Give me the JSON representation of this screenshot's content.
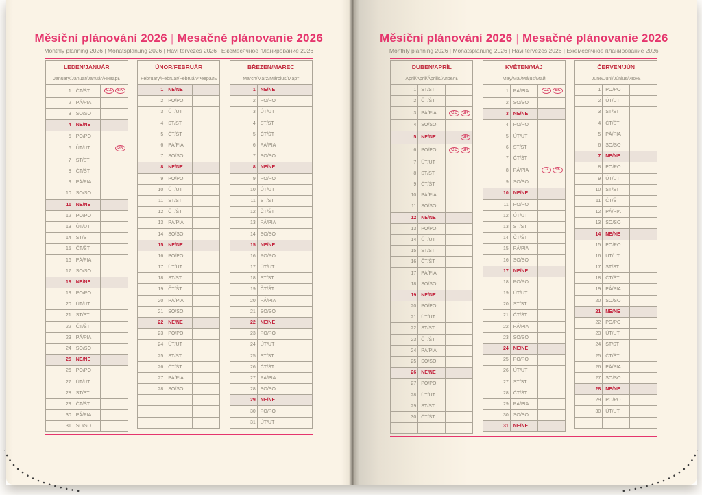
{
  "header": {
    "title_cs": "Měsíční plánování 2026",
    "separator": "|",
    "title_sk": "Mesačné plánovanie 2026",
    "subtitle": "Monthly planning 2026 | Monatsplanung 2026 | Havi tervezés 2026 | Ежемесячное планирование 2026"
  },
  "colors": {
    "accent_pink": "#e5356d",
    "month_name_red": "#c12b3e",
    "sunday_red": "#c2203a",
    "holiday_badge_red": "#d8486a",
    "text_gray": "#8d8779",
    "page_cream": "#faf3e6",
    "sunday_row_bg": "#ebe2da",
    "grid_border": "#aca598"
  },
  "weekday_abbreviations": [
    "PO/PO",
    "ÚT/UT",
    "ST/ST",
    "ČT/ŠT",
    "PÁ/PIA",
    "SO/SO",
    "NE/NE"
  ],
  "holiday_badges": [
    "CZ",
    "SK"
  ],
  "pages": {
    "left": {
      "months": [
        {
          "name": "LEDEN/JANUÁR",
          "languages": "January/Januar/Január/Январь",
          "rows": [
            [
              1,
              "ČT/ŠT",
              [
                "CZ",
                "SK"
              ]
            ],
            [
              2,
              "PÁ/PIA"
            ],
            [
              3,
              "SO/SO"
            ],
            [
              4,
              "NE/NE"
            ],
            [
              5,
              "PO/PO"
            ],
            [
              6,
              "ÚT/UT",
              [
                "SK"
              ]
            ],
            [
              7,
              "ST/ST"
            ],
            [
              8,
              "ČT/ŠT"
            ],
            [
              9,
              "PÁ/PIA"
            ],
            [
              10,
              "SO/SO"
            ],
            [
              11,
              "NE/NE"
            ],
            [
              12,
              "PO/PO"
            ],
            [
              13,
              "ÚT/UT"
            ],
            [
              14,
              "ST/ST"
            ],
            [
              15,
              "ČT/ŠT"
            ],
            [
              16,
              "PÁ/PIA"
            ],
            [
              17,
              "SO/SO"
            ],
            [
              18,
              "NE/NE"
            ],
            [
              19,
              "PO/PO"
            ],
            [
              20,
              "ÚT/UT"
            ],
            [
              21,
              "ST/ST"
            ],
            [
              22,
              "ČT/ŠT"
            ],
            [
              23,
              "PÁ/PIA"
            ],
            [
              24,
              "SO/SO"
            ],
            [
              25,
              "NE/NE"
            ],
            [
              26,
              "PO/PO"
            ],
            [
              27,
              "ÚT/UT"
            ],
            [
              28,
              "ST/ST"
            ],
            [
              29,
              "ČT/ŠT"
            ],
            [
              30,
              "PÁ/PIA"
            ],
            [
              31,
              "SO/SO"
            ]
          ]
        },
        {
          "name": "ÚNOR/FEBRUÁR",
          "languages": "February/Februar/Február/Февраль",
          "rows": [
            [
              1,
              "NE/NE"
            ],
            [
              2,
              "PO/PO"
            ],
            [
              3,
              "ÚT/UT"
            ],
            [
              4,
              "ST/ST"
            ],
            [
              5,
              "ČT/ŠT"
            ],
            [
              6,
              "PÁ/PIA"
            ],
            [
              7,
              "SO/SO"
            ],
            [
              8,
              "NE/NE"
            ],
            [
              9,
              "PO/PO"
            ],
            [
              10,
              "ÚT/UT"
            ],
            [
              11,
              "ST/ST"
            ],
            [
              12,
              "ČT/ŠT"
            ],
            [
              13,
              "PÁ/PIA"
            ],
            [
              14,
              "SO/SO"
            ],
            [
              15,
              "NE/NE"
            ],
            [
              16,
              "PO/PO"
            ],
            [
              17,
              "ÚT/UT"
            ],
            [
              18,
              "ST/ST"
            ],
            [
              19,
              "ČT/ŠT"
            ],
            [
              20,
              "PÁ/PIA"
            ],
            [
              21,
              "SO/SO"
            ],
            [
              22,
              "NE/NE"
            ],
            [
              23,
              "PO/PO"
            ],
            [
              24,
              "ÚT/UT"
            ],
            [
              25,
              "ST/ST"
            ],
            [
              26,
              "ČT/ŠT"
            ],
            [
              27,
              "PÁ/PIA"
            ],
            [
              28,
              "SO/SO"
            ],
            [],
            [],
            []
          ]
        },
        {
          "name": "BŘEZEN/MAREC",
          "languages": "March/März/Március/Март",
          "rows": [
            [
              1,
              "NE/NE"
            ],
            [
              2,
              "PO/PO"
            ],
            [
              3,
              "ÚT/UT"
            ],
            [
              4,
              "ST/ST"
            ],
            [
              5,
              "ČT/ŠT"
            ],
            [
              6,
              "PÁ/PIA"
            ],
            [
              7,
              "SO/SO"
            ],
            [
              8,
              "NE/NE"
            ],
            [
              9,
              "PO/PO"
            ],
            [
              10,
              "ÚT/UT"
            ],
            [
              11,
              "ST/ST"
            ],
            [
              12,
              "ČT/ŠT"
            ],
            [
              13,
              "PÁ/PIA"
            ],
            [
              14,
              "SO/SO"
            ],
            [
              15,
              "NE/NE"
            ],
            [
              16,
              "PO/PO"
            ],
            [
              17,
              "ÚT/UT"
            ],
            [
              18,
              "ST/ST"
            ],
            [
              19,
              "ČT/ŠT"
            ],
            [
              20,
              "PÁ/PIA"
            ],
            [
              21,
              "SO/SO"
            ],
            [
              22,
              "NE/NE"
            ],
            [
              23,
              "PO/PO"
            ],
            [
              24,
              "ÚT/UT"
            ],
            [
              25,
              "ST/ST"
            ],
            [
              26,
              "ČT/ŠT"
            ],
            [
              27,
              "PÁ/PIA"
            ],
            [
              28,
              "SO/SO"
            ],
            [
              29,
              "NE/NE"
            ],
            [
              30,
              "PO/PO"
            ],
            [
              31,
              "ÚT/UT"
            ]
          ]
        }
      ]
    },
    "right": {
      "months": [
        {
          "name": "DUBEN/APRÍL",
          "languages": "April/April/Április/Апрель",
          "rows": [
            [
              1,
              "ST/ST"
            ],
            [
              2,
              "ČT/ŠT"
            ],
            [
              3,
              "PÁ/PIA",
              [
                "CZ",
                "SK"
              ]
            ],
            [
              4,
              "SO/SO"
            ],
            [
              5,
              "NE/NE",
              [
                "SK"
              ]
            ],
            [
              6,
              "PO/PO",
              [
                "CZ",
                "SK"
              ]
            ],
            [
              7,
              "ÚT/UT"
            ],
            [
              8,
              "ST/ST"
            ],
            [
              9,
              "ČT/ŠT"
            ],
            [
              10,
              "PÁ/PIA"
            ],
            [
              11,
              "SO/SO"
            ],
            [
              12,
              "NE/NE"
            ],
            [
              13,
              "PO/PO"
            ],
            [
              14,
              "ÚT/UT"
            ],
            [
              15,
              "ST/ST"
            ],
            [
              16,
              "ČT/ŠT"
            ],
            [
              17,
              "PÁ/PIA"
            ],
            [
              18,
              "SO/SO"
            ],
            [
              19,
              "NE/NE"
            ],
            [
              20,
              "PO/PO"
            ],
            [
              21,
              "ÚT/UT"
            ],
            [
              22,
              "ST/ST"
            ],
            [
              23,
              "ČT/ŠT"
            ],
            [
              24,
              "PÁ/PIA"
            ],
            [
              25,
              "SO/SO"
            ],
            [
              26,
              "NE/NE"
            ],
            [
              27,
              "PO/PO"
            ],
            [
              28,
              "ÚT/UT"
            ],
            [
              29,
              "ST/ST"
            ],
            [
              30,
              "ČT/ŠT"
            ],
            []
          ]
        },
        {
          "name": "KVĚTEN/MÁJ",
          "languages": "May/Mai/Május/Май",
          "rows": [
            [
              1,
              "PÁ/PIA",
              [
                "CZ",
                "SK"
              ]
            ],
            [
              2,
              "SO/SO"
            ],
            [
              3,
              "NE/NE"
            ],
            [
              4,
              "PO/PO"
            ],
            [
              5,
              "ÚT/UT"
            ],
            [
              6,
              "ST/ST"
            ],
            [
              7,
              "ČT/ŠT"
            ],
            [
              8,
              "PÁ/PIA",
              [
                "CZ",
                "SK"
              ]
            ],
            [
              9,
              "SO/SO"
            ],
            [
              10,
              "NE/NE"
            ],
            [
              11,
              "PO/PO"
            ],
            [
              12,
              "ÚT/UT"
            ],
            [
              13,
              "ST/ST"
            ],
            [
              14,
              "ČT/ŠT"
            ],
            [
              15,
              "PÁ/PIA"
            ],
            [
              16,
              "SO/SO"
            ],
            [
              17,
              "NE/NE"
            ],
            [
              18,
              "PO/PO"
            ],
            [
              19,
              "ÚT/UT"
            ],
            [
              20,
              "ST/ST"
            ],
            [
              21,
              "ČT/ŠT"
            ],
            [
              22,
              "PÁ/PIA"
            ],
            [
              23,
              "SO/SO"
            ],
            [
              24,
              "NE/NE"
            ],
            [
              25,
              "PO/PO"
            ],
            [
              26,
              "ÚT/UT"
            ],
            [
              27,
              "ST/ST"
            ],
            [
              28,
              "ČT/ŠT"
            ],
            [
              29,
              "PÁ/PIA"
            ],
            [
              30,
              "SO/SO"
            ],
            [
              31,
              "NE/NE"
            ]
          ]
        },
        {
          "name": "ČERVEN/JÚN",
          "languages": "June/Juni/Június/Июнь",
          "rows": [
            [
              1,
              "PO/PO"
            ],
            [
              2,
              "ÚT/UT"
            ],
            [
              3,
              "ST/ST"
            ],
            [
              4,
              "ČT/ŠT"
            ],
            [
              5,
              "PÁ/PIA"
            ],
            [
              6,
              "SO/SO"
            ],
            [
              7,
              "NE/NE"
            ],
            [
              8,
              "PO/PO"
            ],
            [
              9,
              "ÚT/UT"
            ],
            [
              10,
              "ST/ST"
            ],
            [
              11,
              "ČT/ŠT"
            ],
            [
              12,
              "PÁ/PIA"
            ],
            [
              13,
              "SO/SO"
            ],
            [
              14,
              "NE/NE"
            ],
            [
              15,
              "PO/PO"
            ],
            [
              16,
              "ÚT/UT"
            ],
            [
              17,
              "ST/ST"
            ],
            [
              18,
              "ČT/ŠT"
            ],
            [
              19,
              "PÁ/PIA"
            ],
            [
              20,
              "SO/SO"
            ],
            [
              21,
              "NE/NE"
            ],
            [
              22,
              "PO/PO"
            ],
            [
              23,
              "ÚT/UT"
            ],
            [
              24,
              "ST/ST"
            ],
            [
              25,
              "ČT/ŠT"
            ],
            [
              26,
              "PÁ/PIA"
            ],
            [
              27,
              "SO/SO"
            ],
            [
              28,
              "NE/NE"
            ],
            [
              29,
              "PO/PO"
            ],
            [
              30,
              "ÚT/UT"
            ],
            []
          ]
        }
      ]
    }
  }
}
